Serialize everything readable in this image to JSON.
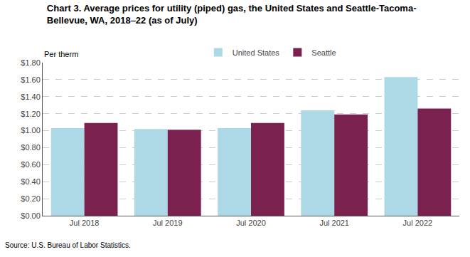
{
  "chart_data": {
    "type": "bar",
    "title": "Chart 3. Average prices for utility (piped) gas, the United States and Seattle-Tacoma-\nBellevue, WA, 2018–22 (as of July)",
    "ylabel": "Per therm",
    "annotations": [
      "Source: U.S. Bureau of Labor Statistics."
    ],
    "categories": [
      "Jul 2018",
      "Jul 2019",
      "Jul 2020",
      "Jul 2021",
      "Jul 2022"
    ],
    "series": [
      {
        "name": "United States",
        "color": "#add8e6",
        "values": [
          1.03,
          1.02,
          1.03,
          1.24,
          1.63
        ]
      },
      {
        "name": "Seattle",
        "color": "#7b2150",
        "values": [
          1.09,
          1.01,
          1.09,
          1.19,
          1.26
        ]
      }
    ],
    "ylim": [
      0,
      1.8
    ],
    "yticks": [
      {
        "value": 0.0,
        "label": "$0.00"
      },
      {
        "value": 0.2,
        "label": "$0.20"
      },
      {
        "value": 0.4,
        "label": "$0.40"
      },
      {
        "value": 0.6,
        "label": "$0.60"
      },
      {
        "value": 0.8,
        "label": "$0.80"
      },
      {
        "value": 1.0,
        "label": "$1.00"
      },
      {
        "value": 1.2,
        "label": "$1.20"
      },
      {
        "value": 1.4,
        "label": "$1.40"
      },
      {
        "value": 1.6,
        "label": "$1.60"
      },
      {
        "value": 1.8,
        "label": "$1.80"
      }
    ],
    "grid": true,
    "legend": "top"
  }
}
